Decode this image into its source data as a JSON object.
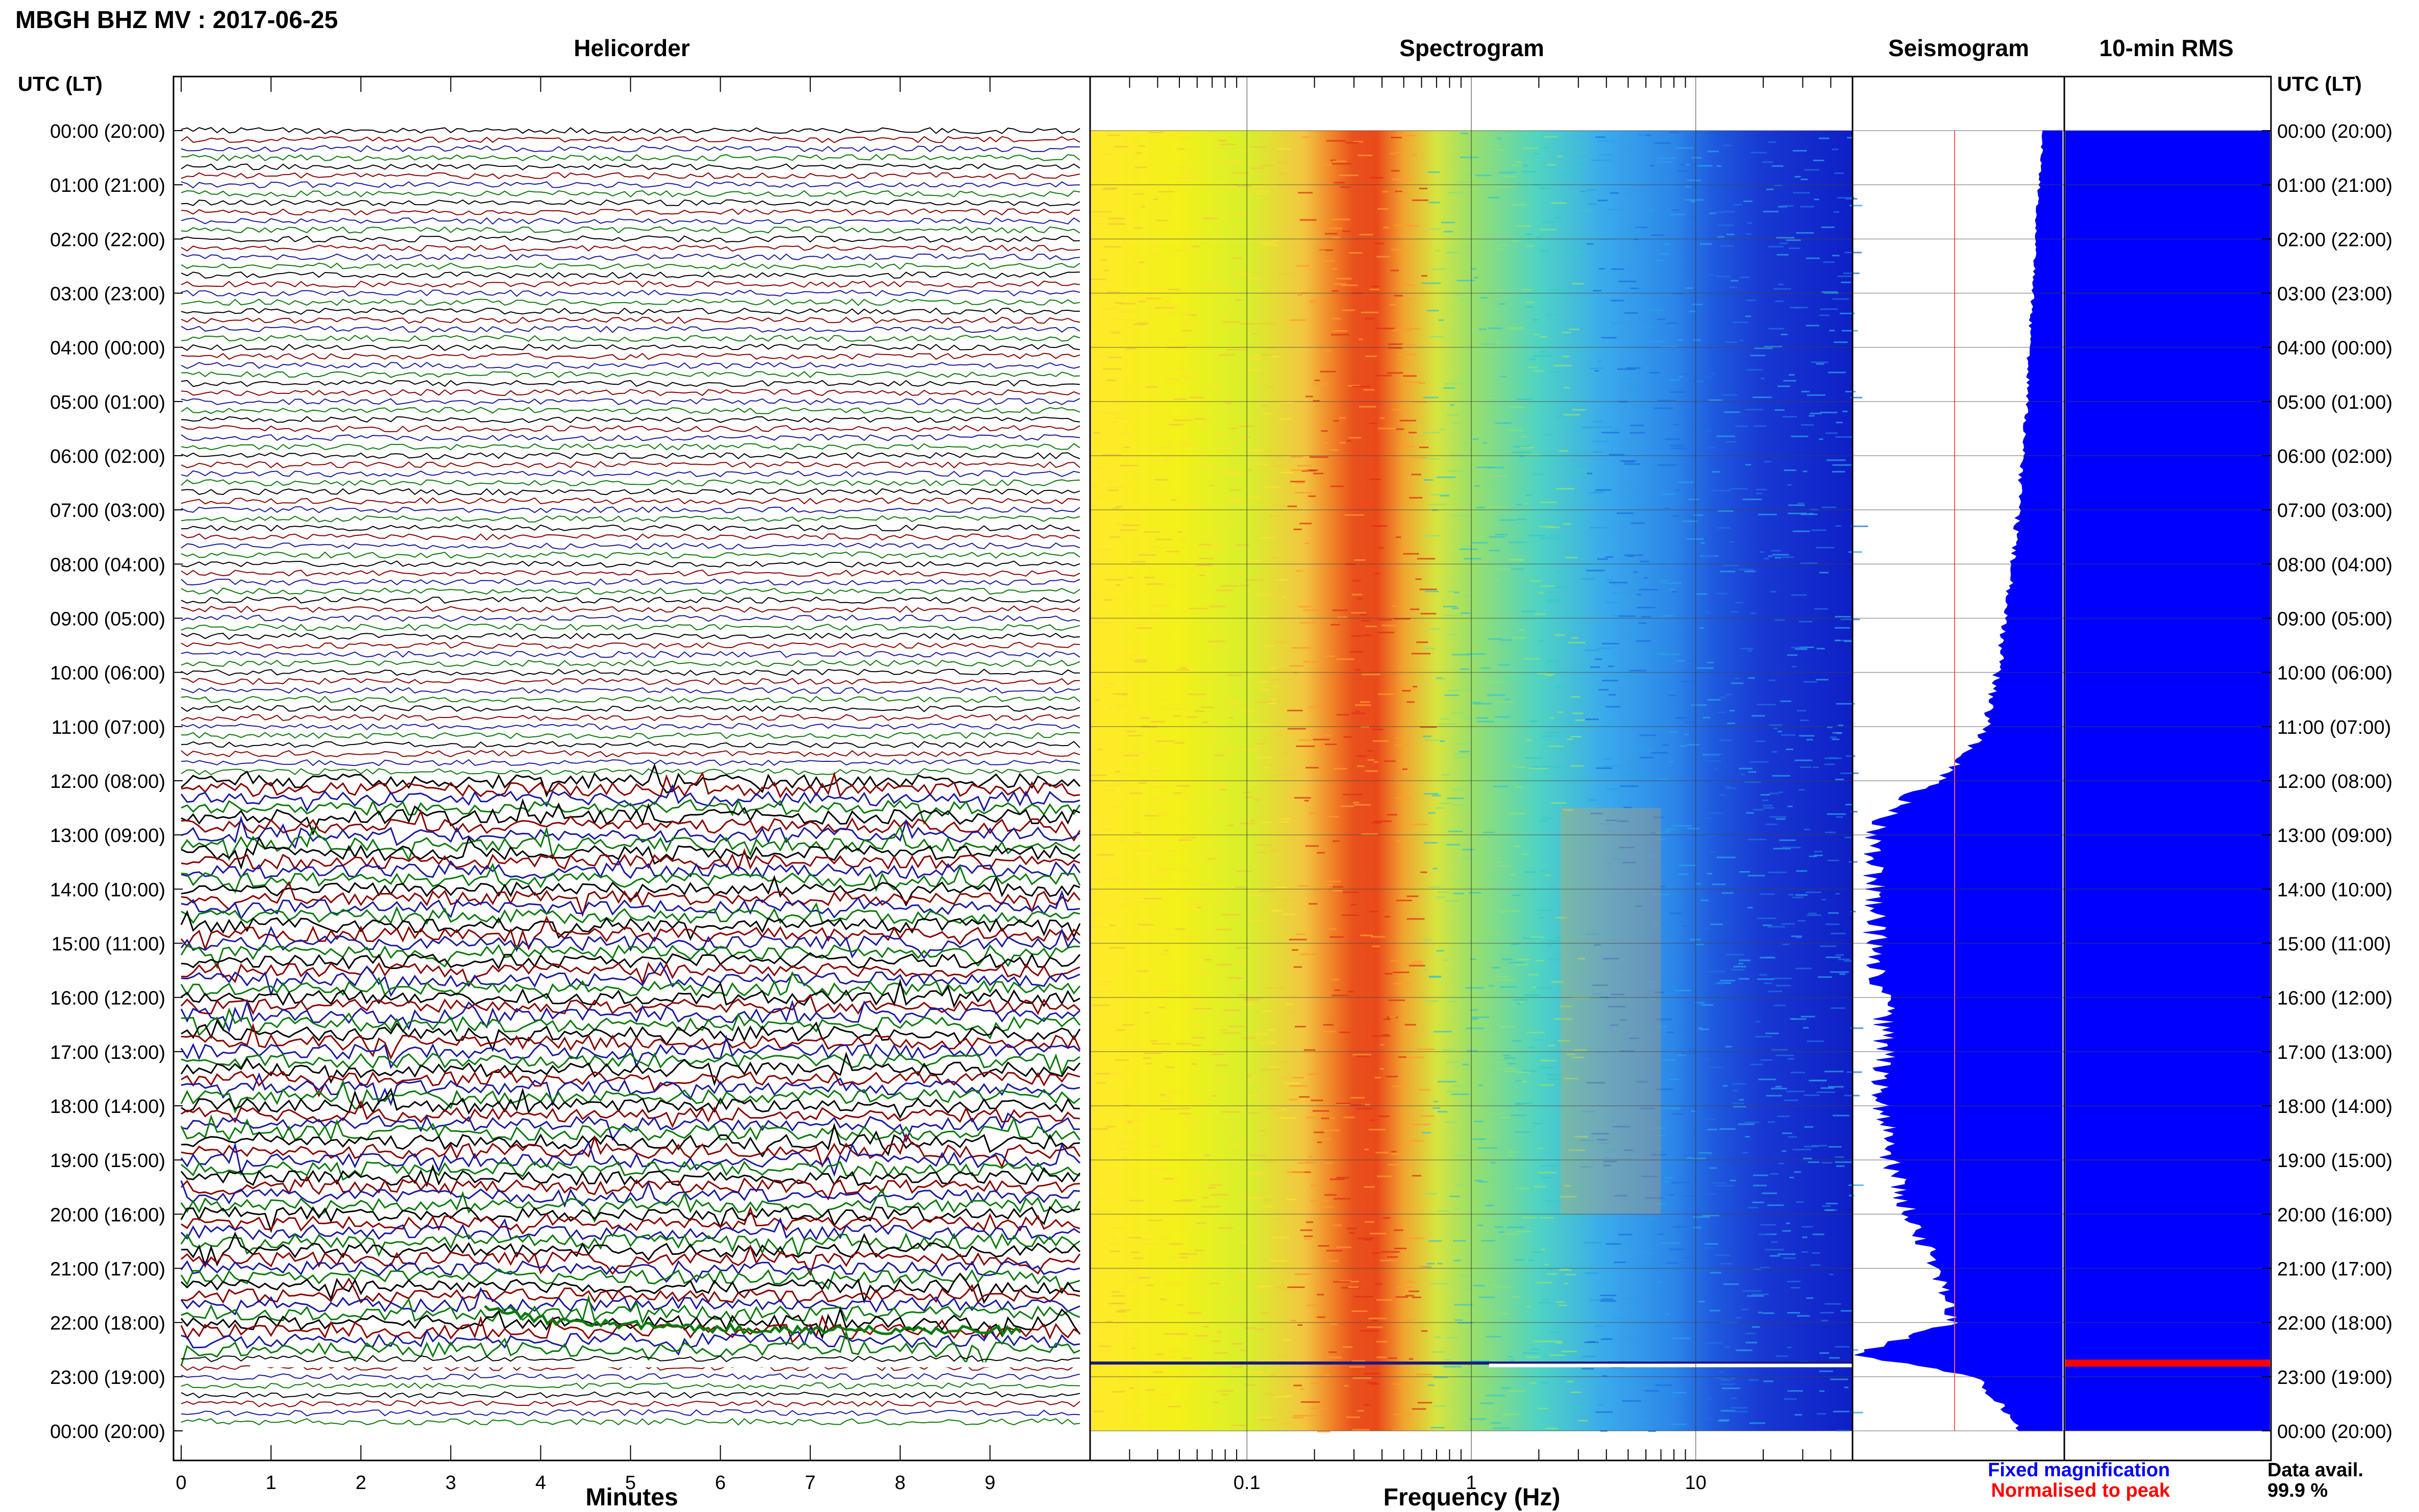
{
  "title": "MBGH BHZ MV : 2017-06-25",
  "panels": {
    "helicorder": "Helicorder",
    "spectrogram": "Spectrogram",
    "seismogram": "Seismogram",
    "rms": "10-min RMS"
  },
  "time_axis_label": "UTC (LT)",
  "time_labels": [
    "00:00 (20:00)",
    "01:00 (21:00)",
    "02:00 (22:00)",
    "03:00 (23:00)",
    "04:00 (00:00)",
    "05:00 (01:00)",
    "06:00 (02:00)",
    "07:00 (03:00)",
    "08:00 (04:00)",
    "09:00 (05:00)",
    "10:00 (06:00)",
    "11:00 (07:00)",
    "12:00 (08:00)",
    "13:00 (09:00)",
    "14:00 (10:00)",
    "15:00 (11:00)",
    "16:00 (12:00)",
    "17:00 (13:00)",
    "18:00 (14:00)",
    "19:00 (15:00)",
    "20:00 (16:00)",
    "21:00 (17:00)",
    "22:00 (18:00)",
    "23:00 (19:00)",
    "00:00 (20:00)"
  ],
  "footer": {
    "fixed": "Fixed magnification",
    "normalised": "Normalised to peak",
    "avail_label": "Data avail.",
    "avail_value": "99.9 %"
  },
  "colors": {
    "trace_cycle": [
      "#000000",
      "#8b0000",
      "#1a1aa0",
      "#0a7a0a"
    ],
    "fixed": "#0000ff",
    "normalised": "#ff0000"
  },
  "chart_data": [
    {
      "type": "line",
      "name": "helicorder",
      "xlabel": "Minutes",
      "x_ticks": [
        0,
        1,
        2,
        3,
        4,
        5,
        6,
        7,
        8,
        9
      ],
      "xlim": [
        0,
        10
      ],
      "rows": 144,
      "row_minutes": 10,
      "active_hours": [
        12,
        22.6
      ]
    },
    {
      "type": "heatmap",
      "name": "spectrogram",
      "xlabel": "Frequency (Hz)",
      "x_scale": "log",
      "x_ticks": [
        0.1,
        1,
        10
      ],
      "x_tick_labels": [
        "0.1",
        "1",
        "10"
      ],
      "xlim": [
        0.02,
        50
      ],
      "peak_frequency_hz": 0.35
    },
    {
      "type": "area",
      "name": "seismogram",
      "hours": [
        0,
        1,
        2,
        3,
        4,
        5,
        6,
        7,
        8,
        9,
        10,
        11,
        11.5,
        12,
        12.5,
        13,
        14,
        15,
        16,
        17,
        18,
        19,
        20,
        21,
        22,
        22.6,
        23,
        23.5,
        24
      ],
      "level": [
        0.09,
        0.11,
        0.13,
        0.14,
        0.16,
        0.17,
        0.19,
        0.21,
        0.24,
        0.27,
        0.31,
        0.37,
        0.45,
        0.6,
        0.82,
        0.92,
        0.89,
        0.9,
        0.86,
        0.85,
        0.87,
        0.82,
        0.74,
        0.6,
        0.53,
        1.0,
        0.42,
        0.3,
        0.2
      ]
    },
    {
      "type": "bar",
      "name": "rms",
      "level": 1.0,
      "spike_hour": 22.75
    }
  ]
}
